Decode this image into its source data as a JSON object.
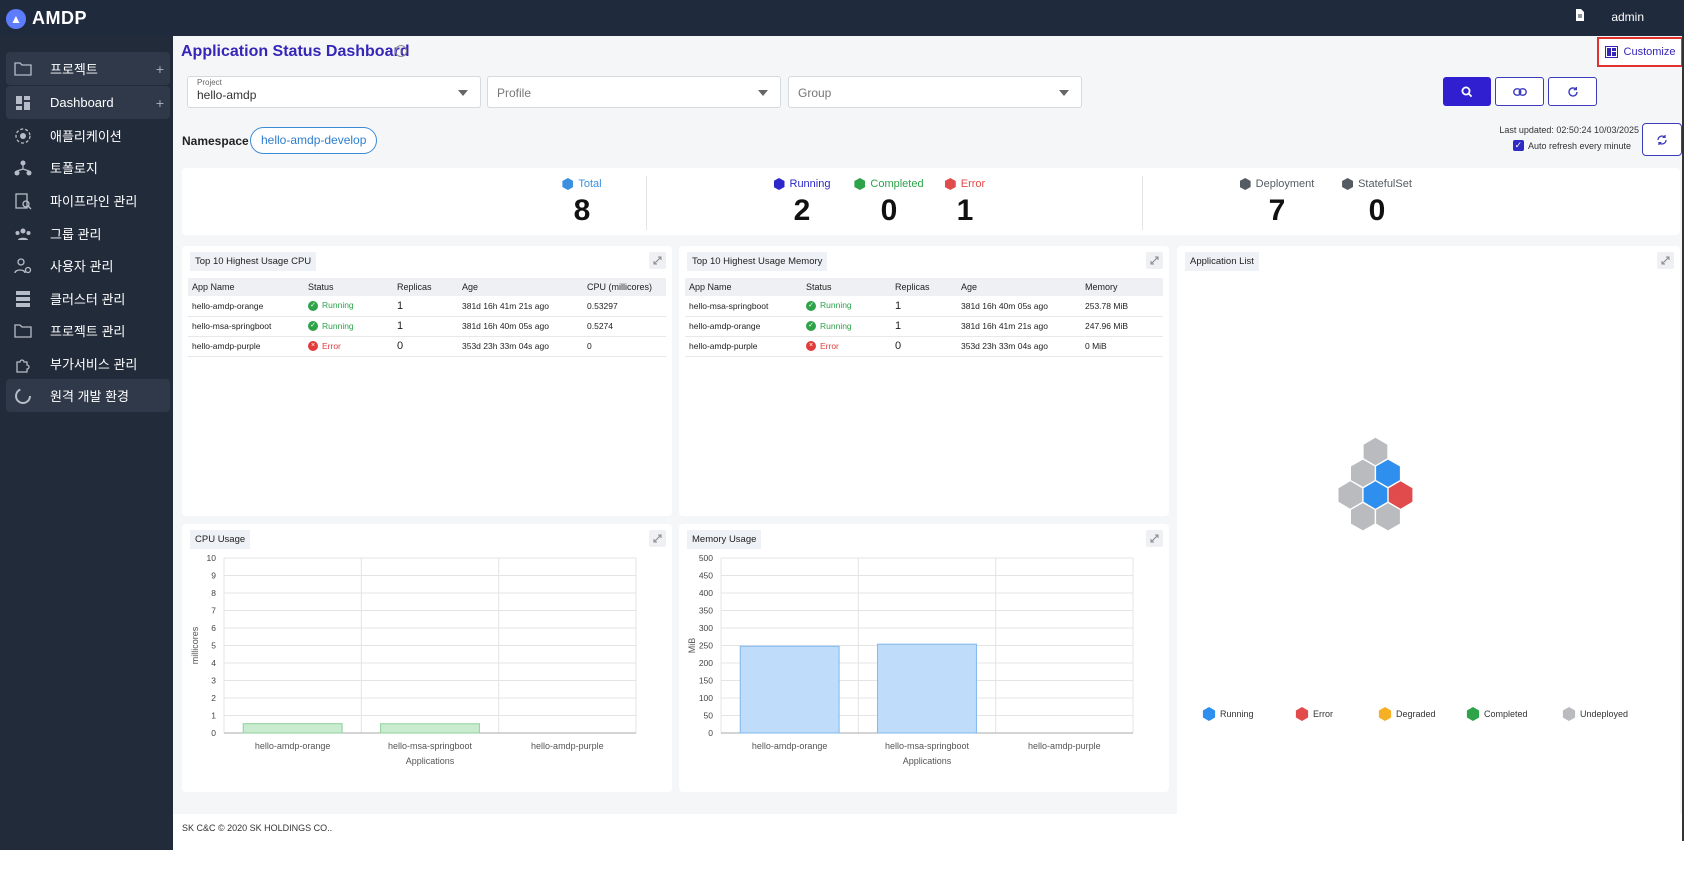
{
  "app": {
    "title": "AMDP",
    "user": "admin"
  },
  "sidebar": {
    "items": [
      {
        "label": "프로젝트",
        "icon": "folder-icon",
        "plus": "+"
      },
      {
        "label": "Dashboard",
        "icon": "dashboard-icon",
        "plus": "+"
      },
      {
        "label": "애플리케이션",
        "icon": "application-icon"
      },
      {
        "label": "토폴로지",
        "icon": "topology-icon"
      },
      {
        "label": "파이프라인 관리",
        "icon": "pipeline-icon"
      },
      {
        "label": "그룹 관리",
        "icon": "group-icon"
      },
      {
        "label": "사용자 관리",
        "icon": "user-settings-icon"
      },
      {
        "label": "클러스터 관리",
        "icon": "cluster-icon"
      },
      {
        "label": "프로젝트 관리",
        "icon": "project-folder-icon"
      },
      {
        "label": "부가서비스 관리",
        "icon": "addon-service-icon"
      },
      {
        "label": "원격 개발 환경",
        "icon": "remote-dev-icon"
      }
    ]
  },
  "header": {
    "title": "Application Status Dashboard",
    "customize_label": "Customize"
  },
  "filters": {
    "project_label": "Project",
    "project_value": "hello-amdp",
    "profile_placeholder": "Profile",
    "group_placeholder": "Group"
  },
  "namespace": {
    "label": "Namespace",
    "value": "hello-amdp-develop"
  },
  "refresh": {
    "last_updated": "Last updated: 02:50:24 10/03/2025",
    "auto_label": "Auto refresh every minute",
    "auto_checked": true
  },
  "stats": {
    "total": {
      "label": "Total",
      "value": "8"
    },
    "running": {
      "label": "Running",
      "value": "2"
    },
    "completed": {
      "label": "Completed",
      "value": "0"
    },
    "error": {
      "label": "Error",
      "value": "1"
    },
    "deployment": {
      "label": "Deployment",
      "value": "7"
    },
    "statefulset": {
      "label": "StatefulSet",
      "value": "0"
    }
  },
  "colors": {
    "running": "#2b27c9",
    "completed": "#2ea34a",
    "error": "#e24b4b",
    "total": "#3d8fe0",
    "neutral": "#555b63",
    "accent": "#3526b8"
  },
  "cpu_table": {
    "title": "Top 10 Highest Usage CPU",
    "headers": [
      "App Name",
      "Status",
      "Replicas",
      "Age",
      "CPU (millicores)"
    ],
    "rows": [
      [
        "hello-amdp-orange",
        "Running",
        "1",
        "381d 16h 41m 21s ago",
        "0.53297"
      ],
      [
        "hello-msa-springboot",
        "Running",
        "1",
        "381d 16h 40m 05s ago",
        "0.5274"
      ],
      [
        "hello-amdp-purple",
        "Error",
        "0",
        "353d 23h 33m 04s ago",
        "0"
      ]
    ]
  },
  "mem_table": {
    "title": "Top 10 Highest Usage Memory",
    "headers": [
      "App Name",
      "Status",
      "Replicas",
      "Age",
      "Memory"
    ],
    "rows": [
      [
        "hello-msa-springboot",
        "Running",
        "1",
        "381d 16h 40m 05s ago",
        "253.78 MiB"
      ],
      [
        "hello-amdp-orange",
        "Running",
        "1",
        "381d 16h 41m 21s ago",
        "247.96 MiB"
      ],
      [
        "hello-amdp-purple",
        "Error",
        "0",
        "353d 23h 33m 04s ago",
        "0 MiB"
      ]
    ]
  },
  "app_list": {
    "title": "Application List",
    "legend": [
      {
        "label": "Running",
        "color": "#2f8fef"
      },
      {
        "label": "Error",
        "color": "#e24b4b"
      },
      {
        "label": "Degraded",
        "color": "#f5b025"
      },
      {
        "label": "Completed",
        "color": "#2ea34a"
      },
      {
        "label": "Undeployed",
        "color": "#b9bbbe"
      }
    ],
    "hexes": [
      "Undeployed",
      "Undeployed",
      "Running",
      "Undeployed",
      "Running",
      "Error",
      "Undeployed",
      "Undeployed"
    ]
  },
  "chart_data": [
    {
      "type": "bar",
      "title": "CPU Usage",
      "categories": [
        "hello-amdp-orange",
        "hello-msa-springboot",
        "hello-amdp-purple"
      ],
      "values": [
        0.53297,
        0.5274,
        0
      ],
      "xlabel": "Applications",
      "ylabel": "millicores",
      "ylim": [
        0,
        10
      ],
      "yticks": [
        0,
        1,
        2,
        3,
        4,
        5,
        6,
        7,
        8,
        9,
        10
      ],
      "bar_color": "#c9ecd0",
      "bar_border": "#8fd19c",
      "grid": true
    },
    {
      "type": "bar",
      "title": "Memory Usage",
      "categories": [
        "hello-amdp-orange",
        "hello-msa-springboot",
        "hello-amdp-purple"
      ],
      "values": [
        247.96,
        253.78,
        0
      ],
      "xlabel": "Applications",
      "ylabel": "MiB",
      "ylim": [
        0,
        500
      ],
      "yticks": [
        0,
        50,
        100,
        150,
        200,
        250,
        300,
        350,
        400,
        450,
        500
      ],
      "bar_color": "#bfdcfa",
      "bar_border": "#7db7ef",
      "grid": true
    }
  ],
  "footer": {
    "text": "SK C&C © 2020 SK HOLDINGS CO.."
  }
}
